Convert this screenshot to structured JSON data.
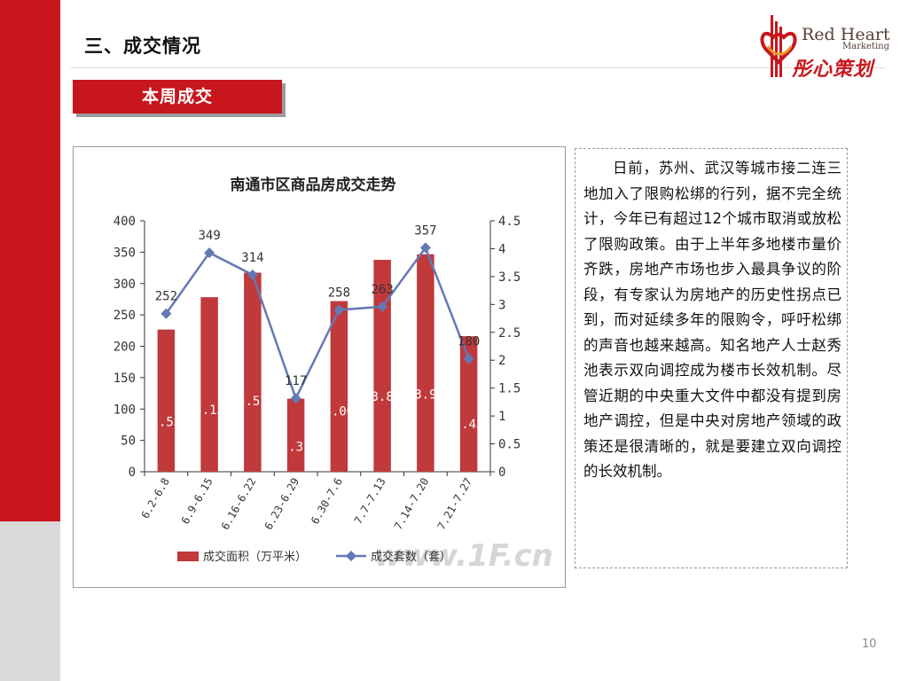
{
  "page": {
    "section_title": "三、成交情况",
    "tag_label": "本周成交",
    "page_number": "10",
    "logo": {
      "en_line1": "Red Heart",
      "en_line2": "Marketing",
      "cn": "彤心策划"
    }
  },
  "paragraph": "日前，苏州、武汉等城市接二连三地加入了限购松绑的行列，据不完全统计，今年已有超过12个城市取消或放松了限购政策。由于上半年多地楼市量价齐跌，房地产市场也步入最具争议的阶段，有专家认为房地产的历史性拐点已到，而对延续多年的限购令，呼吁松绑的声音也越来越高。知名地产人士赵秀池表示双向调控成为楼市长效机制。尽管近期的中央重大文件中都没有提到房地产调控，但是中央对房地产领域的政策还是很清晰的，就是要建立双向调控的长效机制。",
  "chart_data": {
    "type": "bar",
    "title": "南通市区商品房成交走势",
    "categories": [
      "6.2-6.8",
      "6.9-6.15",
      "6.16-6.22",
      "6.23-6.29",
      "6.30-7.6",
      "7.7-7.13",
      "7.14-7.20",
      "7.21-7.27"
    ],
    "y_left": {
      "min": 0,
      "max": 400,
      "ticks": [
        "0",
        "50",
        "100",
        "150",
        "200",
        "250",
        "300",
        "350",
        "400"
      ]
    },
    "y_right": {
      "min": 0,
      "max": 4.5,
      "ticks": [
        "0",
        "0.5",
        "1",
        "1.5",
        "2",
        "2.5",
        "3",
        "3.5",
        "4",
        "4.5"
      ]
    },
    "series": [
      {
        "name": "成交面积（万平米）",
        "type": "bar",
        "axis": "right",
        "color": "#c0393b",
        "values": [
          2.55,
          3.13,
          3.57,
          1.31,
          3.06,
          3.8,
          3.9,
          2.43
        ],
        "labels": [
          "2.55",
          "3.13",
          "3.57",
          "1.31",
          "3.06",
          "3.8",
          "3.9",
          "2.43"
        ]
      },
      {
        "name": "成交套数（套）",
        "type": "line",
        "axis": "left",
        "color": "#6478b4",
        "values": [
          252,
          349,
          314,
          117,
          258,
          263,
          357,
          180
        ],
        "labels": [
          "252",
          "349",
          "314",
          "117",
          "258",
          "263",
          "357",
          "180"
        ]
      }
    ],
    "legend": "bottom",
    "grid": false,
    "watermark": "www.1F.cn"
  }
}
